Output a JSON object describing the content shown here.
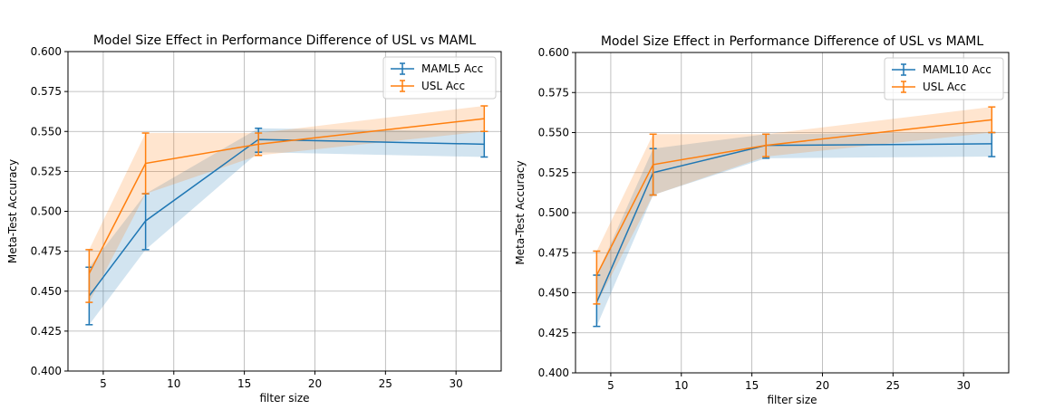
{
  "chart_data": [
    {
      "type": "line",
      "title": "Model Size Effect in Performance Difference of USL vs MAML",
      "xlabel": "filter size",
      "ylabel": "Meta-Test Accuracy",
      "xlim": [
        2.5,
        33.2
      ],
      "ylim": [
        0.4,
        0.6
      ],
      "xticks": [
        5,
        10,
        15,
        20,
        25,
        30
      ],
      "yticks": [
        "0.400",
        "0.425",
        "0.450",
        "0.475",
        "0.500",
        "0.525",
        "0.550",
        "0.575",
        "0.600"
      ],
      "grid": true,
      "legend_position": "top-right",
      "x": [
        4,
        8,
        16,
        32
      ],
      "series": [
        {
          "name": "MAML5 Acc",
          "color": "#1f77b4",
          "values": [
            0.447,
            0.494,
            0.545,
            0.542
          ],
          "lower": [
            0.429,
            0.476,
            0.537,
            0.534
          ],
          "upper": [
            0.465,
            0.511,
            0.552,
            0.55
          ]
        },
        {
          "name": "USL Acc",
          "color": "#ff7f0e",
          "values": [
            0.461,
            0.53,
            0.542,
            0.558
          ],
          "lower": [
            0.443,
            0.511,
            0.535,
            0.55
          ],
          "upper": [
            0.476,
            0.549,
            0.549,
            0.566
          ]
        }
      ]
    },
    {
      "type": "line",
      "title": "Model Size Effect in Performance Difference of USL vs MAML",
      "xlabel": "filter size",
      "ylabel": "Meta-Test Accuracy",
      "xlim": [
        2.5,
        33.2
      ],
      "ylim": [
        0.4,
        0.6
      ],
      "xticks": [
        5,
        10,
        15,
        20,
        25,
        30
      ],
      "yticks": [
        "0.400",
        "0.425",
        "0.450",
        "0.475",
        "0.500",
        "0.525",
        "0.550",
        "0.575",
        "0.600"
      ],
      "grid": true,
      "legend_position": "top-right",
      "x": [
        4,
        8,
        16,
        32
      ],
      "series": [
        {
          "name": "MAML10 Acc",
          "color": "#1f77b4",
          "values": [
            0.444,
            0.525,
            0.542,
            0.543
          ],
          "lower": [
            0.429,
            0.511,
            0.534,
            0.535
          ],
          "upper": [
            0.461,
            0.54,
            0.549,
            0.55
          ]
        },
        {
          "name": "USL Acc",
          "color": "#ff7f0e",
          "values": [
            0.461,
            0.53,
            0.542,
            0.558
          ],
          "lower": [
            0.443,
            0.511,
            0.535,
            0.55
          ],
          "upper": [
            0.476,
            0.549,
            0.549,
            0.566
          ]
        }
      ]
    }
  ]
}
